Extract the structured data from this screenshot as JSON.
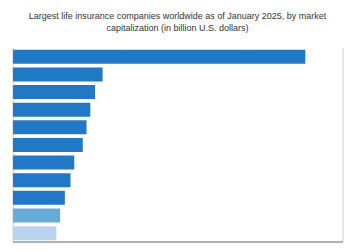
{
  "chart_data": {
    "type": "bar",
    "orientation": "horizontal",
    "title": "Largest life insurance companies worldwide as of January 2025, by market\ncapitalization (in billion U.S. dollars)",
    "categories": [
      null,
      null,
      null,
      null,
      null,
      null,
      null,
      null,
      null,
      null,
      null
    ],
    "values": [
      310,
      95,
      87,
      82,
      78,
      74,
      65,
      61,
      55,
      50,
      46
    ],
    "colors": [
      "#2178c4",
      "#2178c4",
      "#2178c4",
      "#2178c4",
      "#2178c4",
      "#2178c4",
      "#2178c4",
      "#2178c4",
      "#2178c4",
      "#6aaad8",
      "#b8d4ee"
    ],
    "xlim": [
      0,
      350
    ],
    "xticks": [
      0,
      50,
      100,
      150,
      200,
      250,
      300,
      350
    ],
    "grid": true,
    "tick_labels": false
  }
}
